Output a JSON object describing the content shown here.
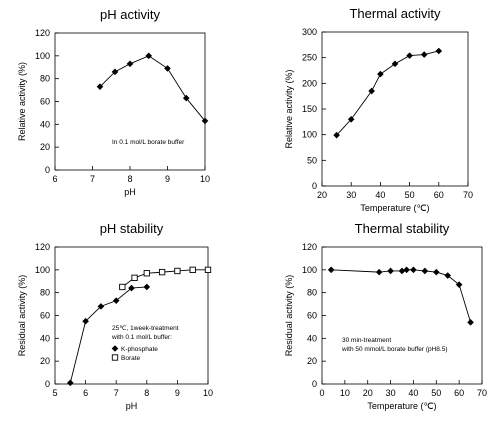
{
  "chart_data": [
    {
      "type": "line",
      "title": "pH activity",
      "xlabel": "pH",
      "ylabel": "Relative activity (%)",
      "xlim": [
        6,
        10
      ],
      "ylim": [
        0,
        120
      ],
      "xticks": [
        6,
        7,
        8,
        9,
        10
      ],
      "yticks": [
        0,
        20,
        40,
        60,
        80,
        100,
        120
      ],
      "annotation": [
        "In 0.1 mol/L borate buffer"
      ],
      "series": [
        {
          "marker": "diamond-filled",
          "x": [
            7.2,
            7.6,
            8.0,
            8.5,
            9.0,
            9.5,
            10.0
          ],
          "y": [
            73,
            86,
            93,
            100,
            89,
            63,
            43
          ]
        }
      ]
    },
    {
      "type": "line",
      "title": "Thermal activity",
      "xlabel": "Temperature (℃)",
      "ylabel": "Relative activity (%)",
      "xlim": [
        20,
        70
      ],
      "ylim": [
        0,
        300
      ],
      "xticks": [
        20,
        30,
        40,
        50,
        60,
        70
      ],
      "yticks": [
        0,
        50,
        100,
        150,
        200,
        250,
        300
      ],
      "annotation": [],
      "series": [
        {
          "marker": "diamond-filled",
          "x": [
            25,
            30,
            37,
            40,
            45,
            50,
            55,
            60
          ],
          "y": [
            99,
            130,
            185,
            218,
            238,
            254,
            256,
            263
          ]
        }
      ]
    },
    {
      "type": "line",
      "title": "pH stability",
      "xlabel": "pH",
      "ylabel": "Residual activity (%)",
      "xlim": [
        5,
        10
      ],
      "ylim": [
        0,
        120
      ],
      "xticks": [
        5,
        6,
        7,
        8,
        9,
        10
      ],
      "yticks": [
        0,
        20,
        40,
        60,
        80,
        100,
        120
      ],
      "annotation": [
        "25℃, 1week-treatment",
        "with 0.1 mol/L buffer:"
      ],
      "legend": [
        "K-phosphate",
        "Borate"
      ],
      "series": [
        {
          "name": "K-phosphate",
          "marker": "diamond-filled",
          "x": [
            5.5,
            6.0,
            6.5,
            7.0,
            7.5,
            8.0
          ],
          "y": [
            1,
            55,
            68,
            73,
            84,
            85
          ]
        },
        {
          "name": "Borate",
          "marker": "square-open",
          "x": [
            7.2,
            7.6,
            8.0,
            8.5,
            9.0,
            9.5,
            10.0
          ],
          "y": [
            85,
            93,
            97,
            98,
            99,
            100,
            100
          ]
        }
      ]
    },
    {
      "type": "line",
      "title": "Thermal stability",
      "xlabel": "Temperature (℃)",
      "ylabel": "Residual activity (%)",
      "xlim": [
        0,
        70
      ],
      "ylim": [
        0,
        120
      ],
      "xticks": [
        0,
        10,
        20,
        30,
        40,
        50,
        60,
        70
      ],
      "yticks": [
        0,
        20,
        40,
        60,
        80,
        100,
        120
      ],
      "annotation": [
        "30 min-treatment",
        "with 50 mmol/L borate buffer (pH8.5)"
      ],
      "series": [
        {
          "marker": "diamond-filled",
          "x": [
            4,
            25,
            30,
            35,
            37,
            40,
            45,
            50,
            55,
            60,
            65
          ],
          "y": [
            100,
            98,
            99,
            99,
            100,
            100,
            99,
            98,
            95,
            87,
            54
          ]
        }
      ]
    }
  ]
}
